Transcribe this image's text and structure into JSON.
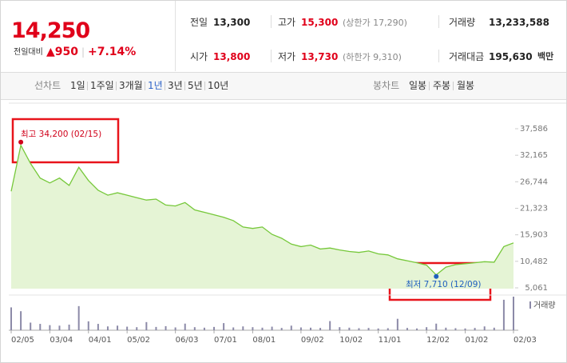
{
  "quote": {
    "price": "14,250",
    "change_label": "전일대비",
    "change": "▲950",
    "change_rate": "+7.14%",
    "color": "#e0001a"
  },
  "summary": [
    [
      {
        "label": "전일",
        "value": "13,300",
        "color": "#222222"
      },
      {
        "label": "고가",
        "value": "15,300",
        "note": "(상한가 17,290)",
        "color": "#e0001a"
      },
      {
        "label": "거래량",
        "value": "13,233,588",
        "color": "#222222"
      }
    ],
    [
      {
        "label": "시가",
        "value": "13,800",
        "color": "#e0001a"
      },
      {
        "label": "저가",
        "value": "13,730",
        "note": "(하한가 9,310)",
        "color": "#e0001a"
      },
      {
        "label": "거래대금",
        "value": "195,630",
        "unit": "백만",
        "color": "#222222"
      }
    ]
  ],
  "tabs": {
    "line_label": "선차트",
    "line_periods": [
      "1일",
      "1주일",
      "3개월",
      "1년",
      "3년",
      "5년",
      "10년"
    ],
    "selected_index": 3,
    "candle_label": "봉차트",
    "candle_periods": [
      "일봉",
      "주봉",
      "월봉"
    ]
  },
  "chart_data": {
    "type": "area",
    "categories": [
      "02/05",
      null,
      null,
      null,
      "03/04",
      null,
      null,
      null,
      "04/01",
      null,
      null,
      null,
      "05/02",
      null,
      null,
      null,
      null,
      "06/03",
      null,
      null,
      null,
      "07/01",
      null,
      null,
      null,
      "08/01",
      null,
      null,
      null,
      null,
      "09/02",
      null,
      null,
      null,
      "10/02",
      null,
      null,
      null,
      "11/01",
      null,
      null,
      null,
      null,
      "12/02",
      null,
      null,
      null,
      "01/02",
      null,
      null,
      null,
      null,
      "02/03"
    ],
    "values": [
      24800,
      34200,
      30500,
      27500,
      26500,
      27500,
      26000,
      29700,
      27000,
      25000,
      24000,
      24500,
      24000,
      23500,
      23000,
      23200,
      22000,
      21800,
      22500,
      21000,
      20500,
      20000,
      19500,
      18800,
      17500,
      17200,
      17500,
      16000,
      15200,
      14000,
      13500,
      13800,
      13000,
      13200,
      12800,
      12500,
      12300,
      12600,
      12000,
      11800,
      11000,
      10600,
      10200,
      9700,
      7710,
      9300,
      9800,
      10000,
      10200,
      10400,
      10300,
      13500,
      14250
    ],
    "color": "#76c83a",
    "fill": "#e5f4d5",
    "ylim": [
      5061,
      37586
    ],
    "yticks": [
      {
        "value": 37586,
        "label": "37,586"
      },
      {
        "value": 32165,
        "label": "32,165"
      },
      {
        "value": 26744,
        "label": "26,744"
      },
      {
        "value": 21323,
        "label": "21,323"
      },
      {
        "value": 15903,
        "label": "15,903"
      },
      {
        "value": 10482,
        "label": "10,482"
      },
      {
        "value": 5061,
        "label": "5,061"
      }
    ],
    "high_label": "최고 34,200 (02/15)",
    "high_index": 1,
    "high_color": "#d0021b",
    "low_label": "최저 7,710 (12/09)",
    "low_index": 44,
    "low_color": "#1f5fbf",
    "volume": {
      "name": "거래량",
      "color": "#8c8aa8",
      "values": [
        9000000,
        7500000,
        3000000,
        2500000,
        2000000,
        1800000,
        2200000,
        9500000,
        3500000,
        2500000,
        1500000,
        1800000,
        1400000,
        1200000,
        3200000,
        1300000,
        1600000,
        1100000,
        2600000,
        1200000,
        1000000,
        1300000,
        2800000,
        1100000,
        1500000,
        1200000,
        1000000,
        1400000,
        900000,
        1800000,
        1100000,
        1000000,
        900000,
        3600000,
        1200000,
        1000000,
        800000,
        900000,
        700000,
        800000,
        4500000,
        900000,
        700000,
        1200000,
        2600000,
        1000000,
        800000,
        700000,
        900000,
        1500000,
        1000000,
        12000000,
        13233588
      ]
    }
  }
}
